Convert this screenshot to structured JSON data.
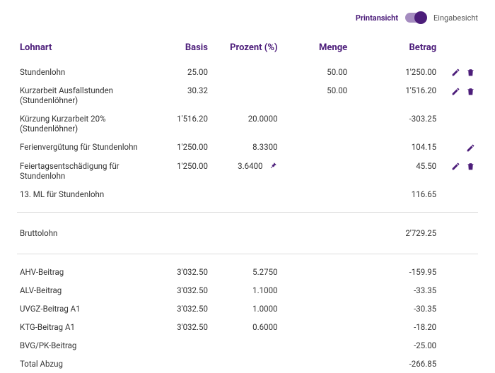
{
  "viewToggle": {
    "left": "Printansicht",
    "right": "Eingabesicht"
  },
  "headers": {
    "lohnart": "Lohnart",
    "basis": "Basis",
    "prozent": "Prozent (%)",
    "menge": "Menge",
    "betrag": "Betrag"
  },
  "rows": [
    {
      "label": "Stundenlohn",
      "basis": "25.00",
      "menge": "50.00",
      "betrag": "1'250.00",
      "edit": true,
      "del": true
    },
    {
      "label": "Kurzarbeit Ausfallstunden (Stundenlöhner)",
      "basis": "30.32",
      "menge": "50.00",
      "betrag": "1'516.20",
      "edit": true,
      "del": true
    },
    {
      "label": "Kürzung Kurzarbeit 20% (Stundenlöhner)",
      "basis": "1'516.20",
      "pct": "20.0000",
      "betrag": "-303.25"
    },
    {
      "label": "Ferienvergütung für Stundenlohn",
      "basis": "1'250.00",
      "pct": "8.3300",
      "betrag": "104.15",
      "edit": true
    },
    {
      "label": "Feiertagsentschädigung für Stundenlohn",
      "basis": "1'250.00",
      "pct": "3.6400",
      "pin": true,
      "betrag": "45.50",
      "edit": true,
      "del": true
    },
    {
      "label": "13. ML für Stundenlohn",
      "betrag": "116.65"
    }
  ],
  "brutto": {
    "label": "Bruttolohn",
    "betrag": "2'729.25"
  },
  "deductions": [
    {
      "label": "AHV-Beitrag",
      "basis": "3'032.50",
      "pct": "5.2750",
      "betrag": "-159.95"
    },
    {
      "label": "ALV-Beitrag",
      "basis": "3'032.50",
      "pct": "1.1000",
      "betrag": "-33.35"
    },
    {
      "label": "UVGZ-Beitrag A1",
      "basis": "3'032.50",
      "pct": "1.0000",
      "betrag": "-30.35"
    },
    {
      "label": "KTG-Beitrag A1",
      "basis": "3'032.50",
      "pct": "0.6000",
      "betrag": "-18.20"
    },
    {
      "label": "BVG/PK-Beitrag",
      "betrag": "-25.00"
    }
  ],
  "totalAbzug": {
    "label": "Total Abzug",
    "betrag": "-266.85"
  },
  "colors": {
    "brand": "#4c1d7a",
    "separator": "#dddddd",
    "text": "#333333"
  }
}
